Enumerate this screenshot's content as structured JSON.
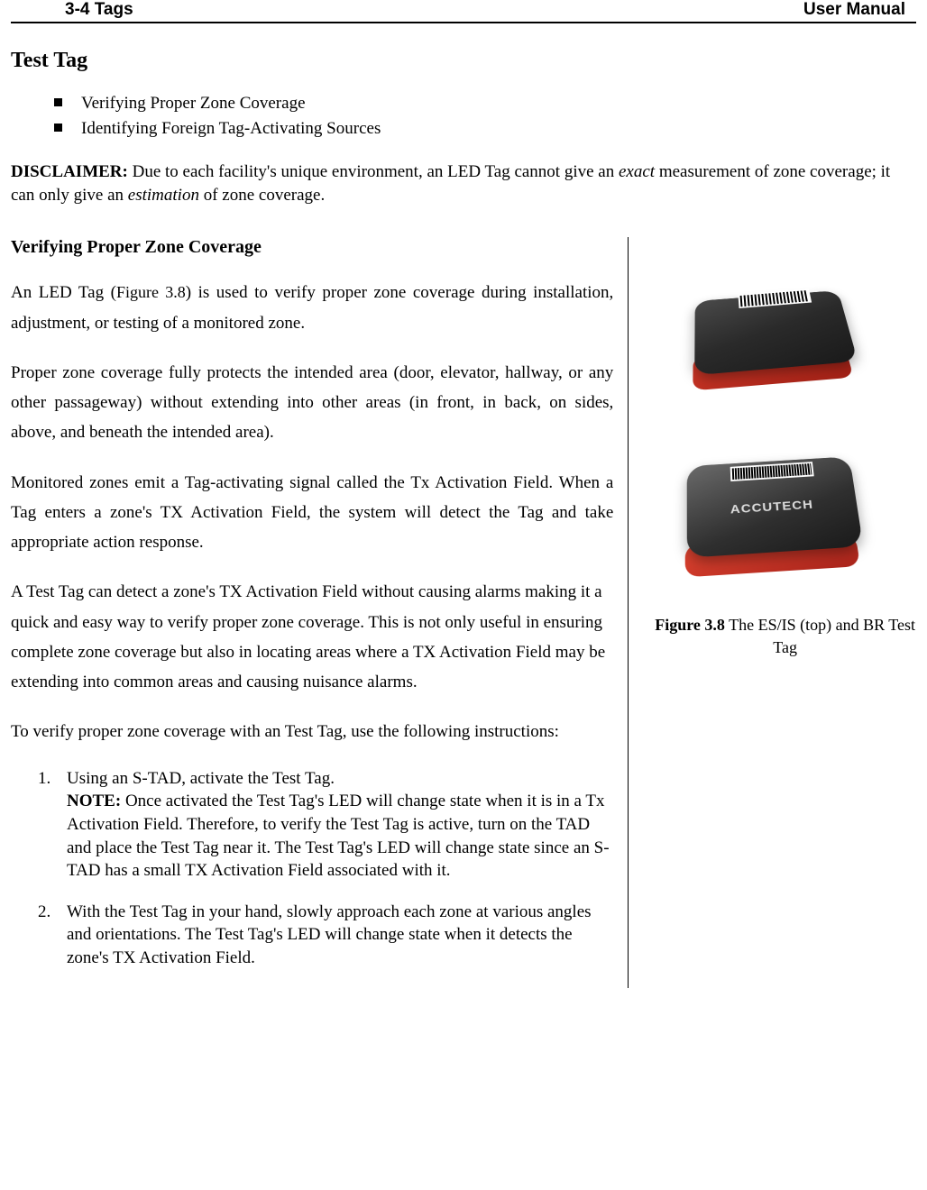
{
  "header": {
    "left": "3-4 Tags",
    "right": "User Manual"
  },
  "title": "Test Tag",
  "topBullets": [
    "Verifying Proper Zone Coverage",
    "Identifying Foreign Tag-Activating Sources"
  ],
  "disclaimer": {
    "label": "DISCLAIMER:",
    "part1": " Due to each facility's unique environment, an LED Tag cannot give an ",
    "em1": "exact",
    "part2": " measurement of zone coverage; it can only give an ",
    "em2": "estimation",
    "part3": " of zone coverage."
  },
  "section": {
    "heading": "Verifying Proper Zone Coverage",
    "p1_a": "An LED Tag (",
    "p1_fig": "Figure 3.8",
    "p1_b": ") is used to verify proper zone coverage during installation, adjustment, or testing of a monitored zone.",
    "p2": "Proper zone coverage fully protects the intended area (door, elevator, hallway, or any other passageway) without extending into other areas (in front, in back, on sides, above, and beneath the intended area).",
    "p3": "Monitored zones emit a Tag-activating signal called the Tx Activation Field. When a Tag enters a zone's TX Activation Field, the system will detect the Tag and take appropriate action response.",
    "p4": "A Test Tag can detect a zone's TX Activation Field without causing alarms making it a quick and easy way to verify proper zone coverage. This is not only useful in ensuring complete zone coverage but also in locating areas where a TX Activation Field may be extending into common areas and causing nuisance alarms.",
    "p5": "To verify proper zone coverage with an Test Tag, use the following instructions:",
    "steps": [
      {
        "lead": "Using an S-TAD, activate the Test Tag.",
        "noteLabel": "NOTE:",
        "noteBody": " Once activated the Test Tag's LED will change state when it is in a Tx Activation Field. Therefore, to verify the Test Tag is active, turn on the TAD and place the Test Tag near it. The Test Tag's LED will change state since an S-TAD has a small TX Activation Field associated with it."
      },
      {
        "lead": "With the Test Tag in your hand, slowly approach each zone at various angles and orientations. The Test Tag's LED will change state when it detects the zone's TX Activation Field."
      }
    ]
  },
  "figure": {
    "brand": "ACCUTECH",
    "captionBold": "Figure 3.8",
    "captionRest": " The ES/IS (top) and BR Test Tag"
  },
  "colors": {
    "text": "#000000",
    "background": "#ffffff",
    "deviceDark": "#2a2a2a",
    "deviceRed": "#c5301f"
  }
}
